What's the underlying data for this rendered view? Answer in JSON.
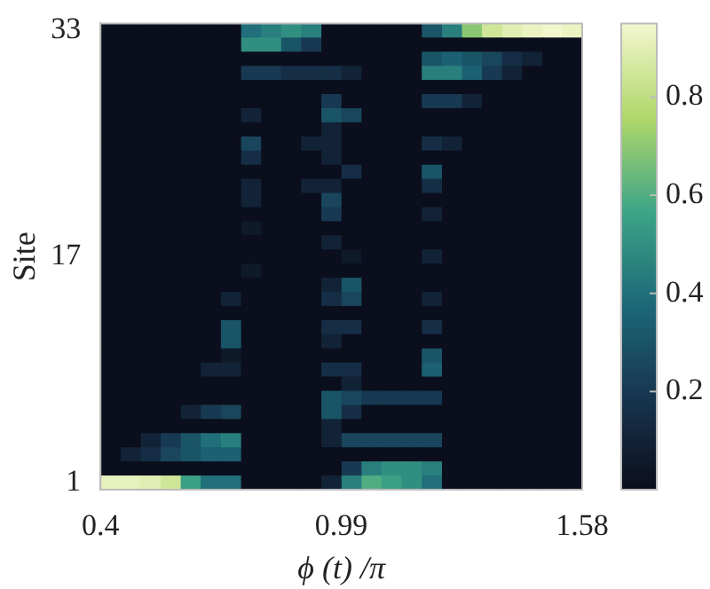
{
  "chart_data": {
    "type": "heatmap",
    "xlabel": "ϕ (t) /π",
    "ylabel": "Site",
    "x": [
      0.425,
      0.474,
      0.523,
      0.572,
      0.621,
      0.67,
      0.72,
      0.769,
      0.818,
      0.867,
      0.916,
      0.966,
      1.015,
      1.064,
      1.113,
      1.162,
      1.212,
      1.261,
      1.31,
      1.359,
      1.408,
      1.458,
      1.507,
      1.556
    ],
    "xlim": [
      0.4,
      1.58
    ],
    "xticks": [
      0.4,
      0.99,
      1.58
    ],
    "y_categories": [
      "33",
      null,
      null,
      null,
      null,
      null,
      null,
      null,
      null,
      null,
      null,
      null,
      null,
      null,
      null,
      null,
      "17",
      null,
      null,
      null,
      null,
      null,
      null,
      null,
      null,
      null,
      null,
      null,
      null,
      null,
      null,
      null,
      "1"
    ],
    "clim": [
      0,
      0.95
    ],
    "cticks": [
      0.2,
      0.4,
      0.6,
      0.8
    ],
    "cells": [
      [
        0,
        0,
        0,
        0,
        0,
        0,
        0,
        0.4,
        0.45,
        0.5,
        0.45,
        0,
        0,
        0,
        0,
        0,
        0.3,
        0.45,
        0.7,
        0.85,
        0.9,
        0.93,
        0.95,
        0.93
      ],
      [
        0,
        0,
        0,
        0,
        0,
        0,
        0,
        0.5,
        0.5,
        0.3,
        0.2,
        0,
        0,
        0,
        0,
        0,
        0,
        0,
        0,
        0,
        0,
        0,
        0,
        0
      ],
      [
        0,
        0,
        0,
        0,
        0,
        0,
        0,
        0,
        0,
        0,
        0,
        0,
        0,
        0,
        0,
        0,
        0.3,
        0.35,
        0.3,
        0.25,
        0.15,
        0.1,
        0,
        0
      ],
      [
        0,
        0,
        0,
        0,
        0,
        0,
        0,
        0.2,
        0.2,
        0.15,
        0.15,
        0.15,
        0.1,
        0,
        0,
        0,
        0.45,
        0.45,
        0.35,
        0.2,
        0.1,
        0,
        0,
        0
      ],
      [
        0,
        0,
        0,
        0,
        0,
        0,
        0,
        0,
        0,
        0,
        0,
        0,
        0,
        0,
        0,
        0,
        0,
        0,
        0,
        0,
        0,
        0,
        0,
        0
      ],
      [
        0,
        0,
        0,
        0,
        0,
        0,
        0,
        0,
        0,
        0,
        0,
        0.2,
        0,
        0,
        0,
        0,
        0.2,
        0.2,
        0.1,
        0,
        0,
        0,
        0,
        0
      ],
      [
        0,
        0,
        0,
        0,
        0,
        0,
        0,
        0.1,
        0,
        0,
        0,
        0.3,
        0.25,
        0,
        0,
        0,
        0,
        0,
        0,
        0,
        0,
        0,
        0,
        0
      ],
      [
        0,
        0,
        0,
        0,
        0,
        0,
        0,
        0,
        0,
        0,
        0,
        0.1,
        0,
        0,
        0,
        0,
        0,
        0,
        0,
        0,
        0,
        0,
        0,
        0
      ],
      [
        0,
        0,
        0,
        0,
        0,
        0,
        0,
        0.25,
        0,
        0,
        0.1,
        0.1,
        0,
        0,
        0,
        0,
        0.15,
        0.1,
        0,
        0,
        0,
        0,
        0,
        0
      ],
      [
        0,
        0,
        0,
        0,
        0,
        0,
        0,
        0.15,
        0,
        0,
        0,
        0.1,
        0,
        0,
        0,
        0,
        0,
        0,
        0,
        0,
        0,
        0,
        0,
        0
      ],
      [
        0,
        0,
        0,
        0,
        0,
        0,
        0,
        0,
        0,
        0,
        0,
        0,
        0.15,
        0,
        0,
        0,
        0.3,
        0,
        0,
        0,
        0,
        0,
        0,
        0
      ],
      [
        0,
        0,
        0,
        0,
        0,
        0,
        0,
        0.1,
        0,
        0,
        0.1,
        0.1,
        0,
        0,
        0,
        0,
        0.15,
        0,
        0,
        0,
        0,
        0,
        0,
        0
      ],
      [
        0,
        0,
        0,
        0,
        0,
        0,
        0,
        0.1,
        0,
        0,
        0,
        0.25,
        0,
        0,
        0,
        0,
        0,
        0,
        0,
        0,
        0,
        0,
        0,
        0
      ],
      [
        0,
        0,
        0,
        0,
        0,
        0,
        0,
        0,
        0,
        0,
        0,
        0.2,
        0,
        0,
        0,
        0,
        0.1,
        0,
        0,
        0,
        0,
        0,
        0,
        0
      ],
      [
        0,
        0,
        0,
        0,
        0,
        0,
        0,
        0.05,
        0,
        0,
        0,
        0,
        0,
        0,
        0,
        0,
        0,
        0,
        0,
        0,
        0,
        0,
        0,
        0
      ],
      [
        0,
        0,
        0,
        0,
        0,
        0,
        0,
        0,
        0,
        0,
        0,
        0.1,
        0,
        0,
        0,
        0,
        0,
        0,
        0,
        0,
        0,
        0,
        0,
        0
      ],
      [
        0,
        0,
        0,
        0,
        0,
        0,
        0,
        0,
        0,
        0,
        0,
        0,
        0.05,
        0,
        0,
        0,
        0.1,
        0,
        0,
        0,
        0,
        0,
        0,
        0
      ],
      [
        0,
        0,
        0,
        0,
        0,
        0,
        0,
        0.05,
        0,
        0,
        0,
        0,
        0,
        0,
        0,
        0,
        0,
        0,
        0,
        0,
        0,
        0,
        0,
        0
      ],
      [
        0,
        0,
        0,
        0,
        0,
        0,
        0,
        0,
        0,
        0,
        0,
        0.1,
        0.3,
        0,
        0,
        0,
        0,
        0,
        0,
        0,
        0,
        0,
        0,
        0
      ],
      [
        0,
        0,
        0,
        0,
        0,
        0,
        0.1,
        0,
        0,
        0,
        0,
        0.15,
        0.25,
        0,
        0,
        0,
        0.1,
        0,
        0,
        0,
        0,
        0,
        0,
        0
      ],
      [
        0,
        0,
        0,
        0,
        0,
        0,
        0,
        0,
        0,
        0,
        0,
        0,
        0,
        0,
        0,
        0,
        0,
        0,
        0,
        0,
        0,
        0,
        0,
        0
      ],
      [
        0,
        0,
        0,
        0,
        0,
        0,
        0.3,
        0,
        0,
        0,
        0,
        0.15,
        0.15,
        0,
        0,
        0,
        0.15,
        0,
        0,
        0,
        0,
        0,
        0,
        0
      ],
      [
        0,
        0,
        0,
        0,
        0,
        0,
        0.3,
        0,
        0,
        0,
        0,
        0.1,
        0,
        0,
        0,
        0,
        0,
        0,
        0,
        0,
        0,
        0,
        0,
        0
      ],
      [
        0,
        0,
        0,
        0,
        0,
        0,
        0.05,
        0,
        0,
        0,
        0,
        0,
        0,
        0,
        0,
        0,
        0.3,
        0,
        0,
        0,
        0,
        0,
        0,
        0
      ],
      [
        0,
        0,
        0,
        0,
        0,
        0.1,
        0.1,
        0,
        0,
        0,
        0,
        0.15,
        0.15,
        0,
        0,
        0,
        0.35,
        0,
        0,
        0,
        0,
        0,
        0,
        0
      ],
      [
        0,
        0,
        0,
        0,
        0,
        0,
        0,
        0,
        0,
        0,
        0,
        0,
        0.1,
        0,
        0,
        0,
        0,
        0,
        0,
        0,
        0,
        0,
        0,
        0
      ],
      [
        0,
        0,
        0,
        0,
        0,
        0,
        0,
        0,
        0,
        0,
        0,
        0.3,
        0.25,
        0.2,
        0.2,
        0.2,
        0.2,
        0,
        0,
        0,
        0,
        0,
        0,
        0
      ],
      [
        0,
        0,
        0,
        0,
        0.1,
        0.2,
        0.25,
        0,
        0,
        0,
        0,
        0.3,
        0.15,
        0,
        0,
        0,
        0,
        0,
        0,
        0,
        0,
        0,
        0,
        0
      ],
      [
        0,
        0,
        0,
        0,
        0,
        0,
        0,
        0,
        0,
        0,
        0,
        0.1,
        0,
        0,
        0,
        0,
        0,
        0,
        0,
        0,
        0,
        0,
        0,
        0
      ],
      [
        0,
        0,
        0.1,
        0.2,
        0.3,
        0.4,
        0.45,
        0,
        0,
        0,
        0,
        0.1,
        0.25,
        0.25,
        0.25,
        0.25,
        0.25,
        0,
        0,
        0,
        0,
        0,
        0,
        0
      ],
      [
        0,
        0.1,
        0.15,
        0.25,
        0.3,
        0.35,
        0.35,
        0,
        0,
        0,
        0,
        0,
        0,
        0,
        0,
        0,
        0,
        0,
        0,
        0,
        0,
        0,
        0,
        0
      ],
      [
        0,
        0,
        0,
        0,
        0,
        0,
        0,
        0,
        0,
        0,
        0,
        0,
        0.2,
        0.45,
        0.5,
        0.5,
        0.45,
        0,
        0,
        0,
        0,
        0,
        0,
        0
      ],
      [
        0.92,
        0.92,
        0.9,
        0.85,
        0.55,
        0.4,
        0.4,
        0,
        0,
        0,
        0,
        0.1,
        0.45,
        0.6,
        0.55,
        0.5,
        0.4,
        0,
        0,
        0,
        0,
        0,
        0,
        0
      ]
    ]
  }
}
